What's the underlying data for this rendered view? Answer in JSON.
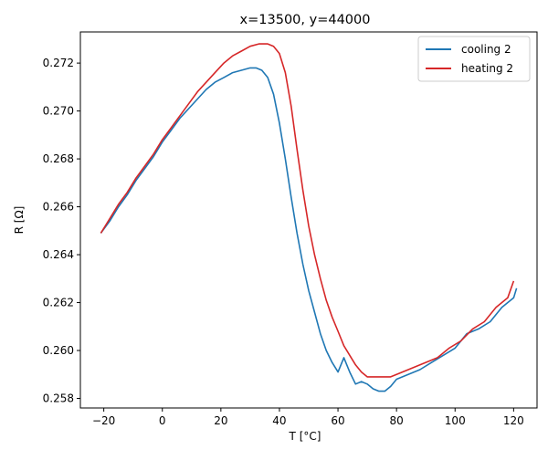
{
  "chart_data": {
    "type": "line",
    "title": "x=13500, y=44000",
    "xlabel": "T [°C]",
    "ylabel": "R [Ω]",
    "xlim": [
      -28,
      128
    ],
    "ylim": [
      0.2576,
      0.2733
    ],
    "xticks": [
      -20,
      0,
      20,
      40,
      60,
      80,
      100,
      120
    ],
    "xtick_labels": [
      "−20",
      "0",
      "20",
      "40",
      "60",
      "80",
      "100",
      "120"
    ],
    "yticks": [
      0.258,
      0.26,
      0.262,
      0.264,
      0.266,
      0.268,
      0.27,
      0.272
    ],
    "ytick_labels": [
      "0.258",
      "0.260",
      "0.262",
      "0.264",
      "0.266",
      "0.268",
      "0.270",
      "0.272"
    ],
    "grid": false,
    "legend_position": "top-right",
    "series": [
      {
        "name": "cooling 2",
        "color": "#1f77b4",
        "x": [
          -21,
          -18,
          -15,
          -12,
          -9,
          -6,
          -3,
          0,
          3,
          6,
          9,
          12,
          15,
          18,
          21,
          24,
          27,
          30,
          32,
          34,
          36,
          38,
          40,
          42,
          44,
          46,
          48,
          50,
          52,
          54,
          56,
          58,
          60,
          62,
          64,
          66,
          68,
          70,
          72,
          74,
          76,
          78,
          80,
          84,
          88,
          92,
          96,
          100,
          104,
          108,
          112,
          116,
          120,
          121
        ],
        "y": [
          0.2649,
          0.2654,
          0.266,
          0.2665,
          0.2671,
          0.2676,
          0.2681,
          0.2687,
          0.2692,
          0.2697,
          0.2701,
          0.2705,
          0.2709,
          0.2712,
          0.2714,
          0.2716,
          0.2717,
          0.2718,
          0.2718,
          0.2717,
          0.2714,
          0.2707,
          0.2695,
          0.268,
          0.2664,
          0.2649,
          0.2636,
          0.2625,
          0.2616,
          0.2607,
          0.26,
          0.2595,
          0.2591,
          0.2597,
          0.2591,
          0.2586,
          0.2587,
          0.2586,
          0.2584,
          0.2583,
          0.2583,
          0.2585,
          0.2588,
          0.259,
          0.2592,
          0.2595,
          0.2598,
          0.2601,
          0.2607,
          0.2609,
          0.2612,
          0.2618,
          0.2622,
          0.2626
        ]
      },
      {
        "name": "heating 2",
        "color": "#d62728",
        "x": [
          -21,
          -18,
          -15,
          -12,
          -9,
          -6,
          -3,
          0,
          3,
          6,
          9,
          12,
          15,
          18,
          21,
          24,
          27,
          30,
          33,
          36,
          38,
          40,
          42,
          44,
          46,
          48,
          50,
          52,
          54,
          56,
          58,
          60,
          62,
          64,
          66,
          68,
          70,
          72,
          74,
          76,
          78,
          80,
          82,
          86,
          90,
          94,
          98,
          102,
          106,
          110,
          114,
          118,
          120
        ],
        "y": [
          0.2649,
          0.2655,
          0.2661,
          0.2666,
          0.2672,
          0.2677,
          0.2682,
          0.2688,
          0.2693,
          0.2698,
          0.2703,
          0.2708,
          0.2712,
          0.2716,
          0.272,
          0.2723,
          0.2725,
          0.2727,
          0.2728,
          0.2728,
          0.2727,
          0.2724,
          0.2716,
          0.2702,
          0.2684,
          0.2667,
          0.2652,
          0.264,
          0.263,
          0.2621,
          0.2614,
          0.2608,
          0.2602,
          0.2598,
          0.2594,
          0.2591,
          0.2589,
          0.2589,
          0.2589,
          0.2589,
          0.2589,
          0.259,
          0.2591,
          0.2593,
          0.2595,
          0.2597,
          0.2601,
          0.2604,
          0.2609,
          0.2612,
          0.2618,
          0.2622,
          0.2629
        ]
      }
    ]
  }
}
